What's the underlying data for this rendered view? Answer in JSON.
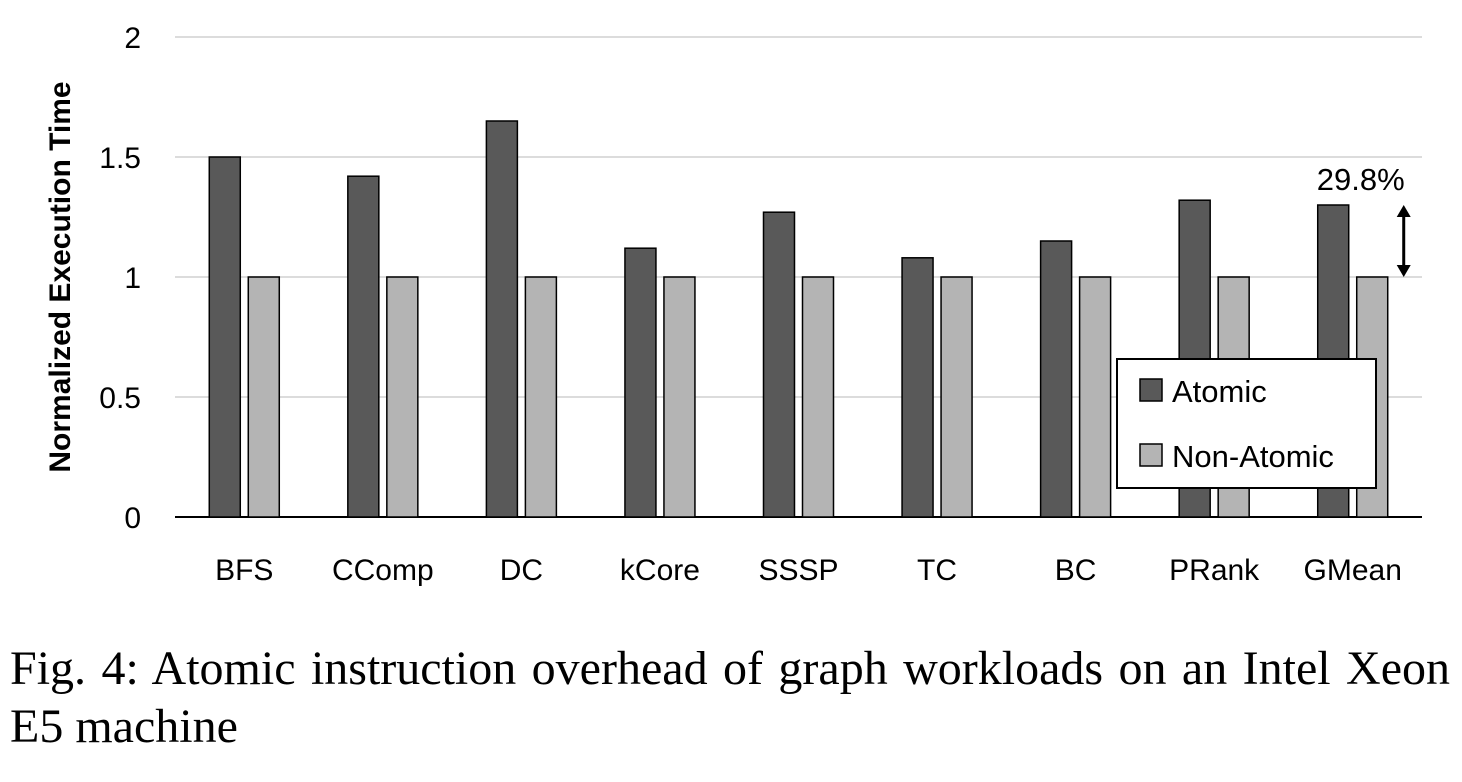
{
  "chart_data": {
    "type": "bar",
    "categories": [
      "BFS",
      "CComp",
      "DC",
      "kCore",
      "SSSP",
      "TC",
      "BC",
      "PRank",
      "GMean"
    ],
    "series": [
      {
        "name": "Atomic",
        "color": "#595959",
        "values": [
          1.5,
          1.42,
          1.65,
          1.12,
          1.27,
          1.08,
          1.15,
          1.32,
          1.3
        ]
      },
      {
        "name": "Non-Atomic",
        "color": "#b4b4b4",
        "values": [
          1,
          1,
          1,
          1,
          1,
          1,
          1,
          1,
          1
        ]
      }
    ],
    "ylabel": "Normalized Execution Time",
    "ylim": [
      0,
      2
    ],
    "yticks": [
      "0",
      "0.5",
      "1",
      "1.5",
      "2"
    ],
    "grid": true,
    "legend_position": "bottom-right",
    "annotation": {
      "text": "29.8%",
      "category": "GMean"
    }
  },
  "caption": "Fig. 4: Atomic instruction overhead of graph workloads on an Intel Xeon E5 machine"
}
